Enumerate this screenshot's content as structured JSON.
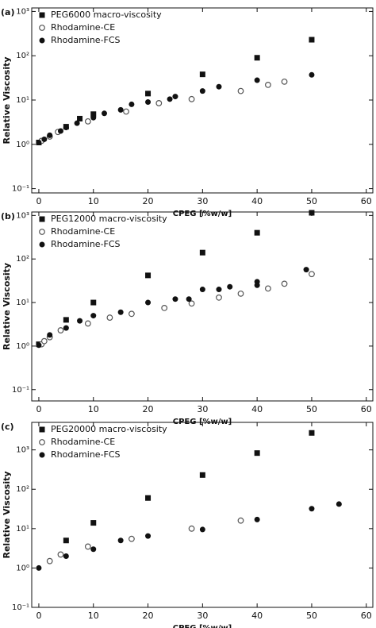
{
  "chart_data": [
    {
      "type": "scatter",
      "panel_label": "(a)",
      "xlabel": "CPEG [%w/w]",
      "ylabel": "Relative Viscosity",
      "log_y": true,
      "xlim": [
        -1.3,
        61.2
      ],
      "xticks": [
        0,
        10,
        20,
        30,
        40,
        50,
        60
      ],
      "ylim": [
        0.08,
        1200
      ],
      "yticks": [
        {
          "value": 0.1,
          "label": "10⁻¹"
        },
        {
          "value": 1,
          "label": "10⁰"
        },
        {
          "value": 10,
          "label": "10¹"
        },
        {
          "value": 100,
          "label": "10²"
        },
        {
          "value": 1000,
          "label": "10³"
        }
      ],
      "series": [
        {
          "name": "PEG6000 macro-viscosity",
          "marker": "square",
          "color": "#111111",
          "x": [
            0,
            5,
            7.5,
            10,
            20,
            30,
            40,
            50
          ],
          "values": [
            1.1,
            2.5,
            3.8,
            4.8,
            14,
            38,
            90,
            230
          ]
        },
        {
          "name": "Rhodamine-CE",
          "marker": "open-circle",
          "color": "#555555",
          "x": [
            0.5,
            2,
            3.5,
            9,
            16,
            22,
            28,
            37,
            42,
            45
          ],
          "values": [
            1.2,
            1.5,
            1.9,
            3.3,
            5.5,
            8.5,
            10.5,
            16,
            22,
            26
          ]
        },
        {
          "name": "Rhodamine-FCS",
          "marker": "circle",
          "color": "#111111",
          "x": [
            0,
            1,
            2,
            4,
            5,
            7,
            10,
            12,
            15,
            17,
            20,
            24,
            25,
            30,
            33,
            40,
            50
          ],
          "values": [
            1.1,
            1.3,
            1.6,
            2,
            2.4,
            3,
            4,
            5,
            6,
            8,
            9,
            10.5,
            12,
            16,
            20,
            28,
            37
          ]
        }
      ]
    },
    {
      "type": "scatter",
      "panel_label": "(b)",
      "xlabel": "CPEG [%w/w]",
      "ylabel": "Relative Viscosity",
      "log_y": true,
      "xlim": [
        -1.3,
        61.2
      ],
      "xticks": [
        0,
        10,
        20,
        30,
        40,
        50,
        60
      ],
      "ylim": [
        0.055,
        1200
      ],
      "yticks": [
        {
          "value": 0.1,
          "label": "10⁻¹"
        },
        {
          "value": 1,
          "label": "10⁰"
        },
        {
          "value": 10,
          "label": "10¹"
        },
        {
          "value": 100,
          "label": "10²"
        },
        {
          "value": 1000,
          "label": "10³"
        }
      ],
      "series": [
        {
          "name": "PEG12000 macro-viscosity",
          "marker": "square",
          "color": "#111111",
          "x": [
            0,
            5,
            10,
            20,
            30,
            40,
            50
          ],
          "values": [
            1.1,
            4,
            10,
            42,
            140,
            400,
            1150
          ]
        },
        {
          "name": "Rhodamine-CE",
          "marker": "open-circle",
          "color": "#555555",
          "x": [
            0.5,
            1,
            2,
            4,
            9,
            13,
            17,
            23,
            28,
            33,
            37,
            42,
            45,
            50
          ],
          "values": [
            1.1,
            1.3,
            1.6,
            2.3,
            3.3,
            4.5,
            5.5,
            7.5,
            9.5,
            13,
            16,
            21,
            27,
            45
          ]
        },
        {
          "name": "Rhodamine-FCS",
          "marker": "circle",
          "color": "#111111",
          "x": [
            0,
            2,
            5,
            7.5,
            10,
            15,
            20,
            25,
            27.5,
            30,
            33,
            35,
            40,
            40,
            49
          ],
          "values": [
            1.05,
            1.8,
            2.6,
            3.8,
            5,
            6,
            10,
            12,
            12,
            20,
            20,
            23,
            30,
            25,
            57
          ]
        }
      ]
    },
    {
      "type": "scatter",
      "panel_label": "(c)",
      "xlabel": "CPEG [%w/w]",
      "ylabel": "Relative Viscosity",
      "log_y": true,
      "xlim": [
        -1.3,
        61.2
      ],
      "xticks": [
        0,
        10,
        20,
        30,
        40,
        50,
        60
      ],
      "ylim": [
        0.1,
        5000
      ],
      "yticks": [
        {
          "value": 0.1,
          "label": "10⁻¹"
        },
        {
          "value": 1,
          "label": "10⁰"
        },
        {
          "value": 10,
          "label": "10¹"
        },
        {
          "value": 100,
          "label": "10²"
        },
        {
          "value": 1000,
          "label": "10³"
        }
      ],
      "series": [
        {
          "name": "PEG20000 macro-viscosity",
          "marker": "square",
          "color": "#111111",
          "x": [
            5,
            10,
            20,
            30,
            40,
            50
          ],
          "values": [
            5,
            14,
            60,
            230,
            830,
            2700
          ]
        },
        {
          "name": "Rhodamine-CE",
          "marker": "open-circle",
          "color": "#555555",
          "x": [
            2,
            4,
            9,
            17,
            28,
            37
          ],
          "values": [
            1.5,
            2.2,
            3.5,
            5.5,
            10,
            16
          ]
        },
        {
          "name": "Rhodamine-FCS",
          "marker": "circle",
          "color": "#111111",
          "x": [
            0,
            5,
            10,
            15,
            20,
            30,
            40,
            50,
            55
          ],
          "values": [
            1,
            2,
            3,
            5,
            6.5,
            9.5,
            17,
            32,
            42
          ]
        }
      ]
    }
  ]
}
